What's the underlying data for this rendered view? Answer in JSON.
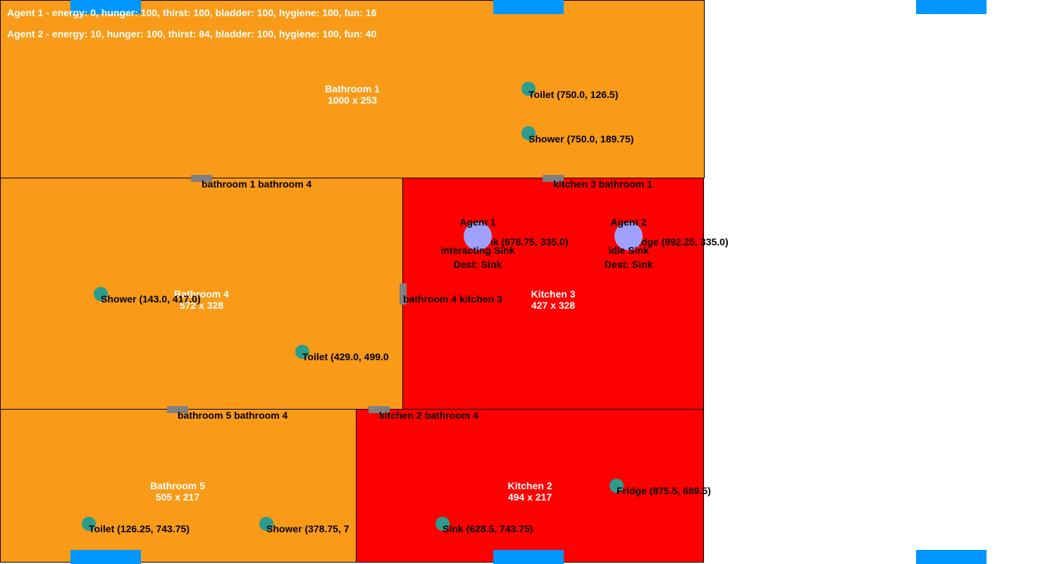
{
  "stats": [
    "Agent 1 - energy: 0, hunger: 100, thirst: 100, bladder: 100, hygiene: 100, fun: 16",
    "Agent 2 - energy: 10, hunger: 100, thirst: 84, bladder: 100, hygiene: 100, fun: 40"
  ],
  "rooms": [
    {
      "name": "Bathroom 1",
      "size": "1000 x 253"
    },
    {
      "name": "Bathroom 4",
      "size": "572 x 328"
    },
    {
      "name": "Kitchen 3",
      "size": "427 x 328"
    },
    {
      "name": "Bathroom 5",
      "size": "505 x 217"
    },
    {
      "name": "Kitchen 2",
      "size": "494 x 217"
    }
  ],
  "doors": [
    "bathroom 1 bathroom 4",
    "kitchen 3 bathroom 1",
    "bathroom 4 kitchen 3",
    "bathroom 5 bathroom 4",
    "kitchen 2 bathroom 4"
  ],
  "objects": [
    "Toilet (750.0, 126.5)",
    "Shower (750.0, 189.75)",
    "Shower (143.0, 417.0)",
    "Toilet (429.0, 499.0",
    "Sink (678.75, 335.0)",
    "Fridge (892.25, 335.0)",
    "Fridge (875.5, 689.5)",
    "Toilet (126.25, 743.75)",
    "Shower (378.75, 7",
    "Sink (628.5, 743.75)"
  ],
  "agents": [
    {
      "name": "Agent 1",
      "state": "interacting Sink",
      "dest": "Dest: Sink"
    },
    {
      "name": "Agent 2",
      "state": "idle Sink",
      "dest": "Dest: Sink"
    }
  ],
  "colors": {
    "bathroom": "#f99b18",
    "kitchen": "#ff0000",
    "window": "#0096ff",
    "door": "#808080",
    "object": "#2a9d8f",
    "agent": "#a0a0ff"
  }
}
